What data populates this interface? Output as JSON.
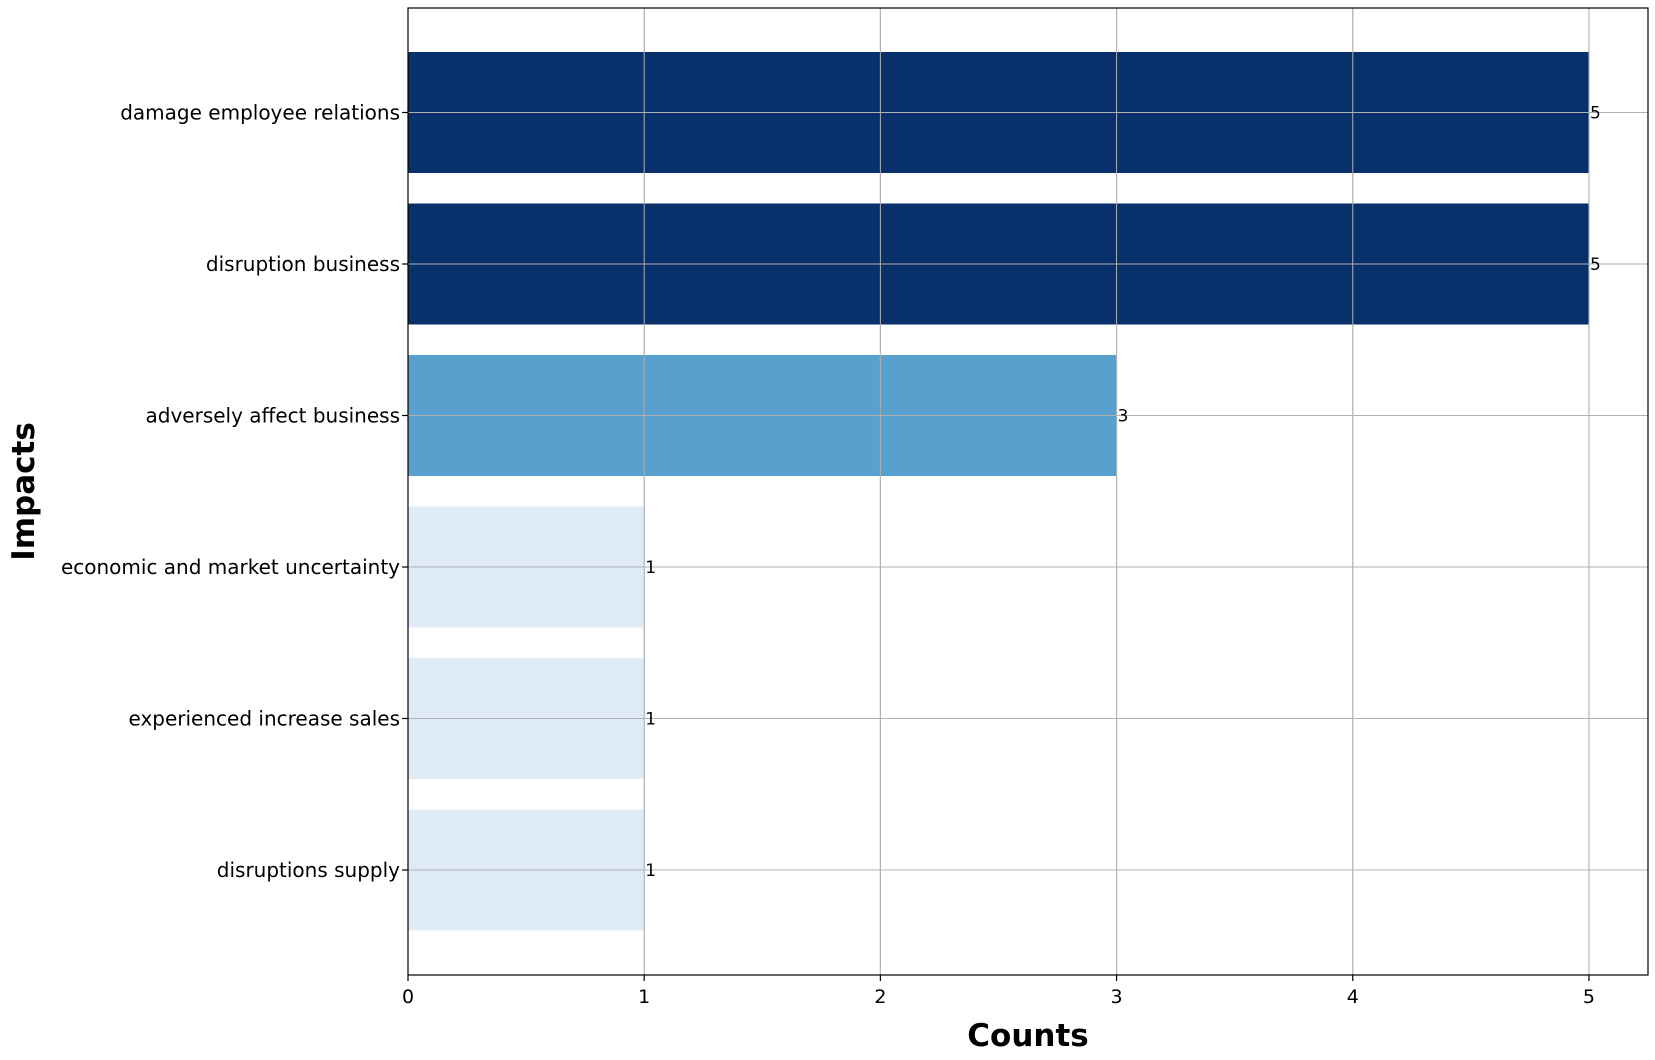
{
  "chart_data": {
    "type": "bar",
    "orientation": "horizontal",
    "categories": [
      "damage employee relations",
      "disruption business",
      "adversely affect business",
      "economic and market uncertainty",
      "experienced increase sales",
      "disruptions supply"
    ],
    "values": [
      5,
      5,
      3,
      1,
      1,
      1
    ],
    "colors": [
      "#08306b",
      "#08306b",
      "#58a1cf",
      "#dfebf7",
      "#dfebf7",
      "#dfebf7"
    ],
    "data_labels": [
      "5",
      "5",
      "3",
      "1",
      "1",
      "1"
    ],
    "xlabel": "Counts",
    "ylabel": "Impacts",
    "xlim": [
      0,
      5.25
    ],
    "xticks": [
      0,
      1,
      2,
      3,
      4,
      5
    ],
    "xtick_labels": [
      "0",
      "1",
      "2",
      "3",
      "4",
      "5"
    ],
    "grid": true,
    "legend": "none"
  }
}
